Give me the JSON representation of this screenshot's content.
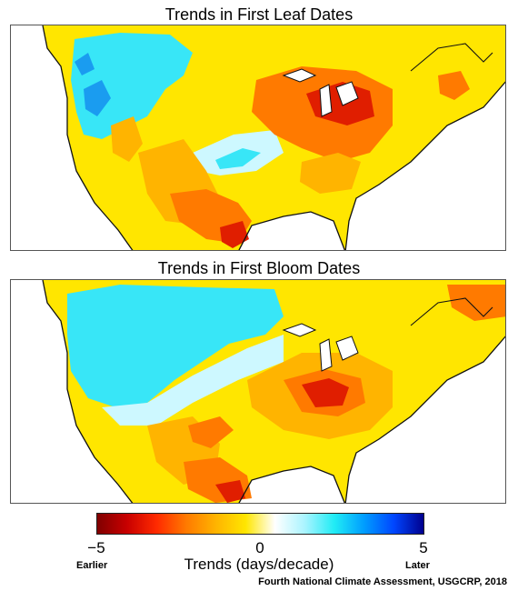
{
  "titles": {
    "leaf": "Trends in First Leaf Dates",
    "bloom": "Trends in First Bloom Dates"
  },
  "colorbar": {
    "min_label": "−5",
    "mid_label": "0",
    "max_label": "5",
    "earlier_label": "Earlier",
    "later_label": "Later",
    "units_label": "Trends (days/decade)",
    "range": [
      -5,
      5
    ],
    "colors": [
      "#800000",
      "#c80000",
      "#ff2a00",
      "#ff7a00",
      "#ffb400",
      "#ffe600",
      "#ffffff",
      "#aaf4ff",
      "#20ecf5",
      "#009dff",
      "#0046ff",
      "#00008e"
    ]
  },
  "credit": "Fourth National Climate Assessment, USGCRP, 2018",
  "palette": {
    "yellow": "#ffe600",
    "light_orange": "#ffb400",
    "orange": "#ff7a00",
    "red": "#e01e00",
    "white": "#ffffff",
    "pale_cyan": "#cdf8ff",
    "cyan": "#38e6f7",
    "blue": "#1a9cf0",
    "coastline": "#111111"
  }
}
